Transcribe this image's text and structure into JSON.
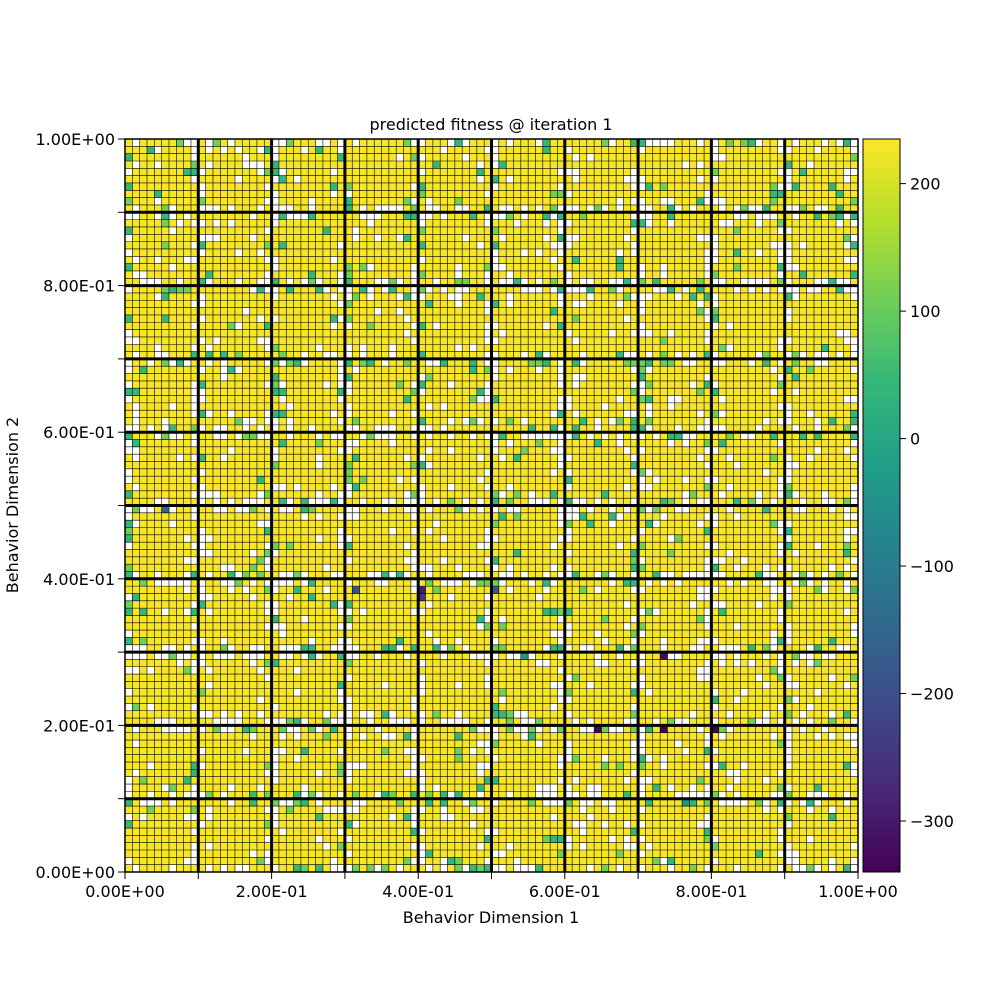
{
  "chart_data": {
    "type": "heatmap",
    "title": "predicted fitness @ iteration 1",
    "xlabel": "Behavior Dimension 1",
    "ylabel": "Behavior Dimension 2",
    "xlim": [
      0,
      1
    ],
    "ylim": [
      0,
      1
    ],
    "x_tick_labels": [
      "0.00E+00",
      "2.00E-01",
      "4.00E-01",
      "6.00E-01",
      "8.00E-01",
      "1.00E+00"
    ],
    "y_tick_labels": [
      "0.00E+00",
      "2.00E-01",
      "4.00E-01",
      "6.00E-01",
      "8.00E-01",
      "1.00E+00"
    ],
    "x_tick_values": [
      0,
      0.2,
      0.4,
      0.6,
      0.8,
      1.0
    ],
    "y_tick_values": [
      0,
      0.2,
      0.4,
      0.6,
      0.8,
      1.0
    ],
    "grid": {
      "major_cells_per_axis": 10,
      "minor_cells_per_major": 10,
      "empty_cells_color": "#ffffff"
    },
    "colorbar": {
      "colormap": "viridis",
      "min": -340,
      "max": 235,
      "tick_values": [
        200,
        100,
        0,
        -100,
        -200,
        -300
      ],
      "tick_labels": [
        "200",
        "100",
        "0",
        "−100",
        "−200",
        "−300"
      ],
      "stops": [
        "#440154",
        "#482878",
        "#3e4989",
        "#31688e",
        "#26828e",
        "#1f9e89",
        "#35b779",
        "#6ece58",
        "#b5de2b",
        "#fde725"
      ]
    },
    "typical_filled_value": 230,
    "notable_low_values": [
      {
        "x": 0.805,
        "y": 0.195,
        "value": -340
      },
      {
        "x": 0.735,
        "y": 0.195,
        "value": -340
      },
      {
        "x": 0.645,
        "y": 0.195,
        "value": -340
      },
      {
        "x": 0.735,
        "y": 0.295,
        "value": -330
      },
      {
        "x": 0.405,
        "y": 0.385,
        "value": -300
      },
      {
        "x": 0.405,
        "y": 0.375,
        "value": -250
      },
      {
        "x": 0.315,
        "y": 0.385,
        "value": -200
      },
      {
        "x": 0.505,
        "y": 0.385,
        "value": -180
      },
      {
        "x": 0.055,
        "y": 0.495,
        "value": -150
      },
      {
        "x": 0.765,
        "y": 0.095,
        "value": -40
      },
      {
        "x": 0.545,
        "y": 0.295,
        "value": -40
      }
    ]
  }
}
